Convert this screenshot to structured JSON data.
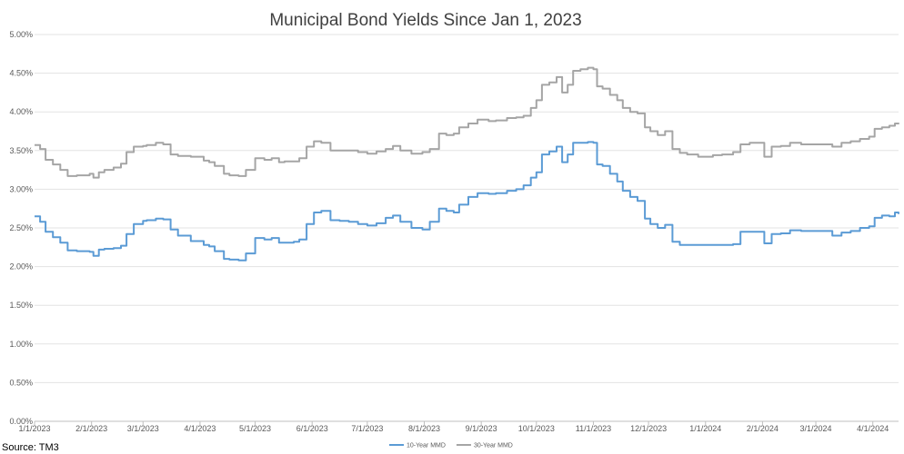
{
  "chart_data": {
    "type": "line",
    "title": "Municipal Bond Yields Since Jan 1, 2023",
    "xlabel": "",
    "ylabel": "",
    "source": "Source: TM3",
    "x_ticks": [
      "1/1/2023",
      "2/1/2023",
      "3/1/2023",
      "4/1/2023",
      "5/1/2023",
      "6/1/2023",
      "7/1/2023",
      "8/1/2023",
      "9/1/2023",
      "10/1/2023",
      "11/1/2023",
      "12/1/2023",
      "1/1/2024",
      "2/1/2024",
      "3/1/2024",
      "4/1/2024"
    ],
    "y_ticks": [
      "0.00%",
      "0.50%",
      "1.00%",
      "1.50%",
      "2.00%",
      "2.50%",
      "3.00%",
      "3.50%",
      "4.00%",
      "4.50%",
      "5.00%"
    ],
    "xlim": [
      "2023-01-01",
      "2024-04-15"
    ],
    "ylim": [
      0,
      5
    ],
    "grid": "horizontal",
    "legend_position": "bottom",
    "series": [
      {
        "name": "10-Year MMD",
        "color": "#5B9BD5",
        "x": [
          "2023-01-01",
          "2023-01-04",
          "2023-01-07",
          "2023-01-11",
          "2023-01-15",
          "2023-01-19",
          "2023-01-24",
          "2023-01-31",
          "2023-02-02",
          "2023-02-05",
          "2023-02-08",
          "2023-02-13",
          "2023-02-17",
          "2023-02-20",
          "2023-02-24",
          "2023-03-01",
          "2023-03-03",
          "2023-03-08",
          "2023-03-12",
          "2023-03-16",
          "2023-03-20",
          "2023-03-27",
          "2023-04-03",
          "2023-04-06",
          "2023-04-09",
          "2023-04-14",
          "2023-04-17",
          "2023-04-22",
          "2023-04-26",
          "2023-05-01",
          "2023-05-06",
          "2023-05-10",
          "2023-05-14",
          "2023-05-17",
          "2023-05-22",
          "2023-05-25",
          "2023-05-29",
          "2023-06-02",
          "2023-06-06",
          "2023-06-11",
          "2023-06-16",
          "2023-06-21",
          "2023-06-26",
          "2023-07-01",
          "2023-07-06",
          "2023-07-11",
          "2023-07-15",
          "2023-07-19",
          "2023-07-25",
          "2023-07-31",
          "2023-08-04",
          "2023-08-09",
          "2023-08-13",
          "2023-08-17",
          "2023-08-20",
          "2023-08-25",
          "2023-08-30",
          "2023-09-05",
          "2023-09-09",
          "2023-09-15",
          "2023-09-20",
          "2023-09-24",
          "2023-09-28",
          "2023-10-01",
          "2023-10-04",
          "2023-10-08",
          "2023-10-12",
          "2023-10-15",
          "2023-10-18",
          "2023-10-21",
          "2023-10-25",
          "2023-10-29",
          "2023-11-01",
          "2023-11-03",
          "2023-11-06",
          "2023-11-10",
          "2023-11-14",
          "2023-11-17",
          "2023-11-21",
          "2023-11-25",
          "2023-11-29",
          "2023-12-02",
          "2023-12-06",
          "2023-12-10",
          "2023-12-14",
          "2023-12-18",
          "2023-12-22",
          "2023-12-28",
          "2024-01-01",
          "2024-01-05",
          "2024-01-10",
          "2024-01-16",
          "2024-01-20",
          "2024-01-25",
          "2024-01-31",
          "2024-02-02",
          "2024-02-06",
          "2024-02-11",
          "2024-02-16",
          "2024-02-22",
          "2024-02-28",
          "2024-03-05",
          "2024-03-10",
          "2024-03-15",
          "2024-03-20",
          "2024-03-25",
          "2024-03-30",
          "2024-04-02",
          "2024-04-06",
          "2024-04-10",
          "2024-04-13",
          "2024-04-15"
        ],
        "y": [
          2.65,
          2.58,
          2.45,
          2.38,
          2.31,
          2.21,
          2.2,
          2.19,
          2.14,
          2.22,
          2.23,
          2.24,
          2.27,
          2.42,
          2.55,
          2.59,
          2.6,
          2.62,
          2.61,
          2.48,
          2.4,
          2.33,
          2.28,
          2.26,
          2.2,
          2.1,
          2.09,
          2.08,
          2.17,
          2.37,
          2.35,
          2.37,
          2.31,
          2.31,
          2.32,
          2.35,
          2.55,
          2.7,
          2.72,
          2.6,
          2.59,
          2.58,
          2.55,
          2.53,
          2.56,
          2.63,
          2.66,
          2.58,
          2.5,
          2.48,
          2.58,
          2.75,
          2.72,
          2.7,
          2.8,
          2.9,
          2.95,
          2.94,
          2.95,
          2.98,
          3.0,
          3.05,
          3.15,
          3.22,
          3.45,
          3.49,
          3.55,
          3.35,
          3.45,
          3.6,
          3.6,
          3.61,
          3.6,
          3.32,
          3.3,
          3.2,
          3.1,
          2.98,
          2.9,
          2.85,
          2.62,
          2.55,
          2.5,
          2.54,
          2.32,
          2.28,
          2.28,
          2.28,
          2.28,
          2.28,
          2.28,
          2.29,
          2.45,
          2.45,
          2.45,
          2.3,
          2.42,
          2.43,
          2.47,
          2.46,
          2.46,
          2.46,
          2.4,
          2.44,
          2.46,
          2.5,
          2.52,
          2.63,
          2.66,
          2.65,
          2.7,
          2.68
        ]
      },
      {
        "name": "30-Year MMD",
        "color": "#A5A5A5",
        "x": [
          "2023-01-01",
          "2023-01-04",
          "2023-01-07",
          "2023-01-11",
          "2023-01-15",
          "2023-01-19",
          "2023-01-24",
          "2023-01-31",
          "2023-02-02",
          "2023-02-05",
          "2023-02-08",
          "2023-02-13",
          "2023-02-17",
          "2023-02-20",
          "2023-02-24",
          "2023-03-01",
          "2023-03-03",
          "2023-03-08",
          "2023-03-12",
          "2023-03-16",
          "2023-03-20",
          "2023-03-27",
          "2023-04-03",
          "2023-04-06",
          "2023-04-09",
          "2023-04-14",
          "2023-04-17",
          "2023-04-22",
          "2023-04-26",
          "2023-05-01",
          "2023-05-06",
          "2023-05-10",
          "2023-05-14",
          "2023-05-17",
          "2023-05-22",
          "2023-05-25",
          "2023-05-29",
          "2023-06-02",
          "2023-06-06",
          "2023-06-11",
          "2023-06-16",
          "2023-06-21",
          "2023-06-26",
          "2023-07-01",
          "2023-07-06",
          "2023-07-11",
          "2023-07-15",
          "2023-07-19",
          "2023-07-25",
          "2023-07-31",
          "2023-08-04",
          "2023-08-09",
          "2023-08-13",
          "2023-08-17",
          "2023-08-20",
          "2023-08-25",
          "2023-08-30",
          "2023-09-05",
          "2023-09-09",
          "2023-09-15",
          "2023-09-20",
          "2023-09-24",
          "2023-09-28",
          "2023-10-01",
          "2023-10-04",
          "2023-10-08",
          "2023-10-12",
          "2023-10-15",
          "2023-10-18",
          "2023-10-21",
          "2023-10-25",
          "2023-10-29",
          "2023-11-01",
          "2023-11-03",
          "2023-11-06",
          "2023-11-10",
          "2023-11-14",
          "2023-11-17",
          "2023-11-21",
          "2023-11-25",
          "2023-11-29",
          "2023-12-02",
          "2023-12-06",
          "2023-12-10",
          "2023-12-14",
          "2023-12-18",
          "2023-12-22",
          "2023-12-28",
          "2024-01-01",
          "2024-01-05",
          "2024-01-10",
          "2024-01-16",
          "2024-01-20",
          "2024-01-25",
          "2024-01-31",
          "2024-02-02",
          "2024-02-06",
          "2024-02-11",
          "2024-02-16",
          "2024-02-22",
          "2024-02-28",
          "2024-03-05",
          "2024-03-10",
          "2024-03-15",
          "2024-03-20",
          "2024-03-25",
          "2024-03-30",
          "2024-04-02",
          "2024-04-06",
          "2024-04-10",
          "2024-04-13",
          "2024-04-15"
        ],
        "y": [
          3.57,
          3.52,
          3.38,
          3.32,
          3.25,
          3.17,
          3.18,
          3.2,
          3.15,
          3.22,
          3.25,
          3.28,
          3.33,
          3.48,
          3.55,
          3.56,
          3.57,
          3.6,
          3.58,
          3.45,
          3.43,
          3.42,
          3.37,
          3.35,
          3.3,
          3.2,
          3.18,
          3.17,
          3.25,
          3.4,
          3.38,
          3.4,
          3.35,
          3.36,
          3.36,
          3.4,
          3.55,
          3.62,
          3.6,
          3.5,
          3.5,
          3.5,
          3.48,
          3.46,
          3.49,
          3.52,
          3.56,
          3.5,
          3.46,
          3.48,
          3.52,
          3.72,
          3.7,
          3.72,
          3.8,
          3.85,
          3.9,
          3.88,
          3.89,
          3.92,
          3.93,
          3.95,
          4.05,
          4.15,
          4.35,
          4.38,
          4.45,
          4.25,
          4.35,
          4.53,
          4.55,
          4.57,
          4.55,
          4.33,
          4.3,
          4.22,
          4.15,
          4.05,
          4.0,
          3.98,
          3.8,
          3.75,
          3.7,
          3.75,
          3.52,
          3.47,
          3.45,
          3.42,
          3.42,
          3.44,
          3.45,
          3.48,
          3.58,
          3.6,
          3.6,
          3.42,
          3.55,
          3.56,
          3.6,
          3.58,
          3.58,
          3.58,
          3.55,
          3.6,
          3.62,
          3.65,
          3.68,
          3.78,
          3.8,
          3.82,
          3.85,
          3.84
        ]
      }
    ]
  }
}
